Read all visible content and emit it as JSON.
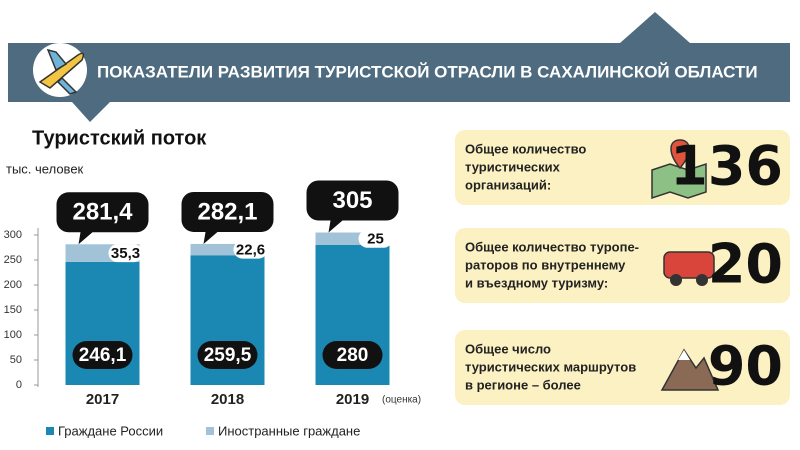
{
  "header": {
    "title": "ПОКАЗАТЕЛИ РАЗВИТИЯ ТУРИСТСКОЙ ОТРАСЛИ В САХАЛИНСКОЙ ОБЛАСТИ"
  },
  "chart_data": {
    "type": "bar",
    "stacked": true,
    "title": "Туристский поток",
    "y_label": "тыс. человек",
    "categories": [
      "2017",
      "2018",
      "2019"
    ],
    "category_note": "(оценка)",
    "series": [
      {
        "name": "Граждане России",
        "color": "#1b87b3",
        "values": [
          246.1,
          259.5,
          280
        ],
        "value_labels": [
          "246,1",
          "259,5",
          "280"
        ]
      },
      {
        "name": "Иностранные граждане",
        "color": "#a2c2d8",
        "values": [
          35.3,
          22.6,
          25
        ],
        "value_labels": [
          "35,3",
          "22,6",
          "25"
        ]
      }
    ],
    "totals": [
      281.4,
      282.1,
      305
    ],
    "total_labels": [
      "281,4",
      "282,1",
      "305"
    ],
    "ylim": [
      0,
      300
    ],
    "yticks": [
      0,
      50,
      100,
      150,
      200,
      250,
      300
    ]
  },
  "cards": [
    {
      "lines": [
        "Общее количество",
        "туристических",
        "организаций:"
      ],
      "value": "136"
    },
    {
      "lines": [
        "Общее количество туропе-",
        "раторов по внутреннему",
        "и въездному туризму:"
      ],
      "value": "20"
    },
    {
      "lines": [
        "Общее число",
        "туристических маршрутов",
        "в регионе – более"
      ],
      "value": "90"
    }
  ]
}
